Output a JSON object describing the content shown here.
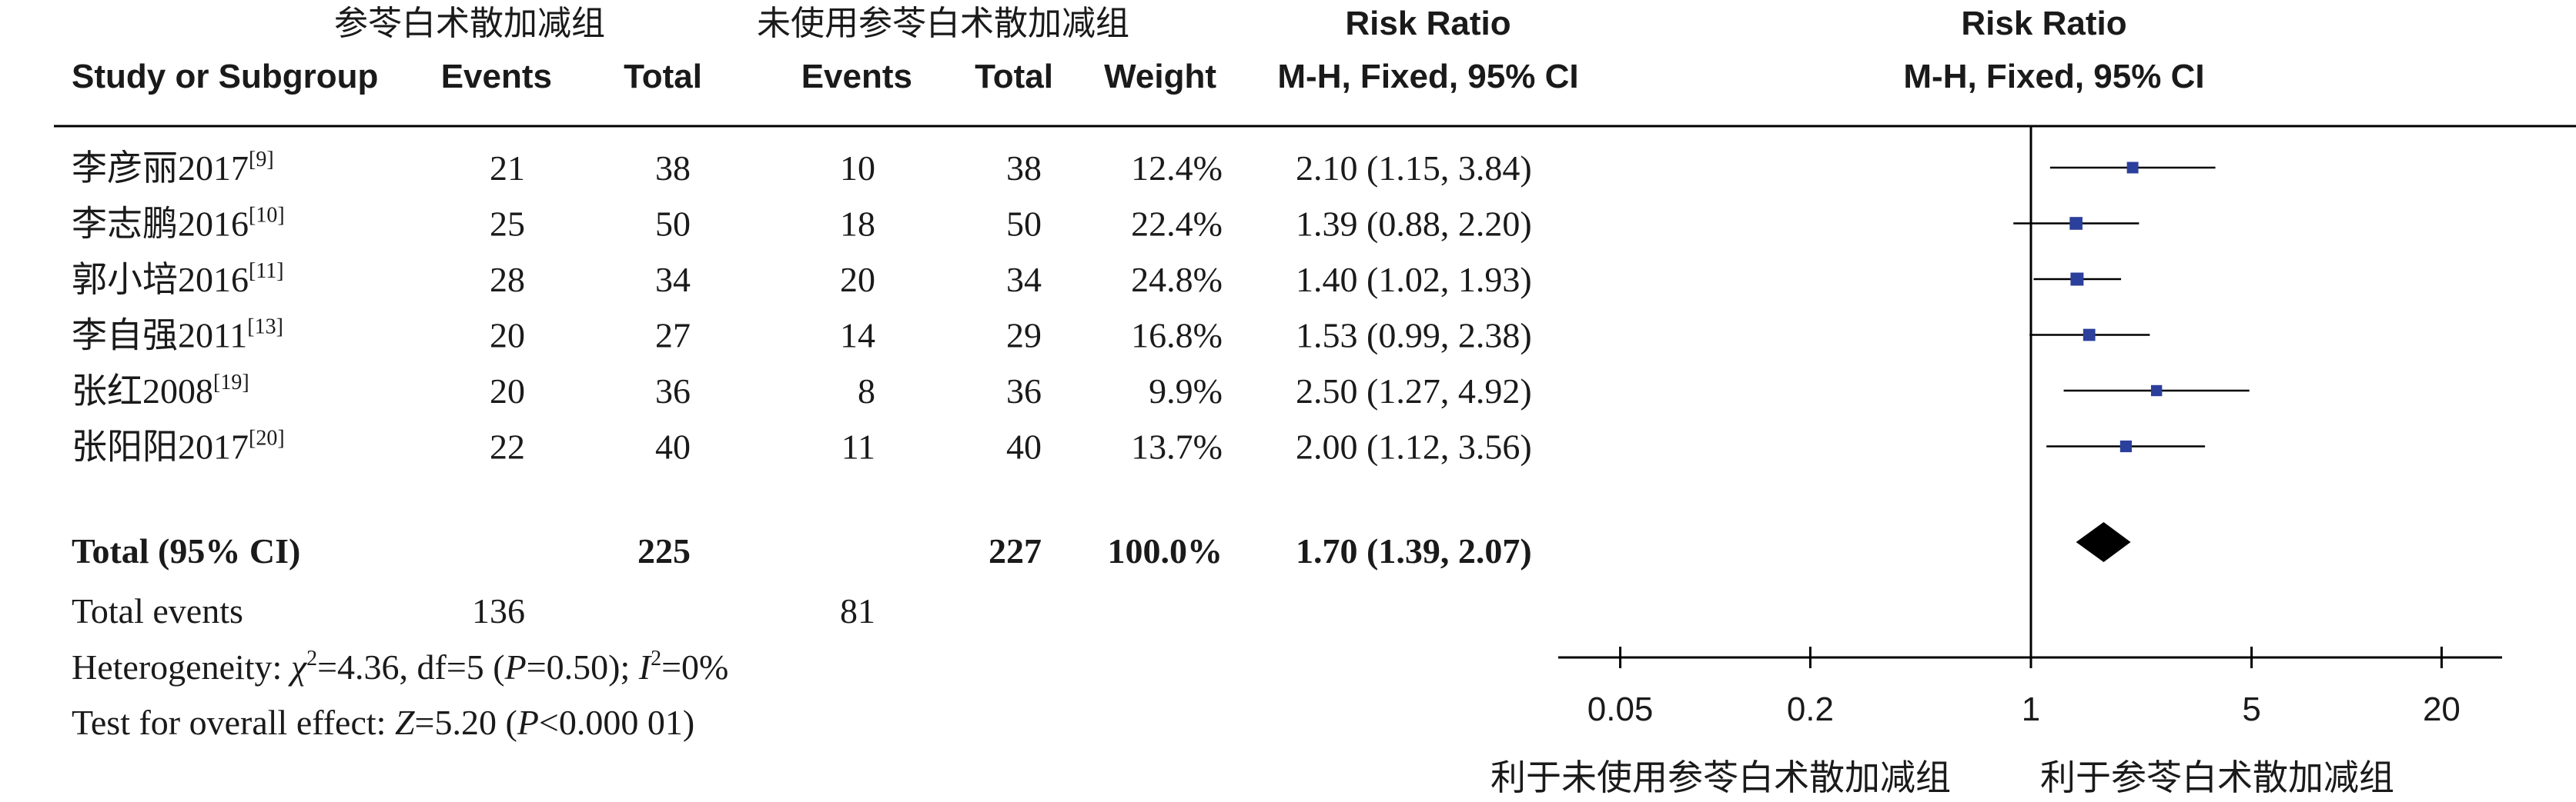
{
  "header": {
    "group_exp": "参苓白术散加减组",
    "group_ctl": "未使用参苓白术散加减组",
    "col_study": "Study or Subgroup",
    "col_events_exp": "Events",
    "col_total_exp": "Total",
    "col_events_ctl": "Events",
    "col_total_ctl": "Total",
    "col_weight": "Weight",
    "col_rr_title": "Risk Ratio",
    "col_rr_method": "M-H, Fixed, 95% CI",
    "plot_title": "Risk Ratio",
    "plot_method": "M-H, Fixed, 95% CI"
  },
  "studies": [
    {
      "name": "李彦丽2017",
      "ref": "[9]",
      "events_exp": "21",
      "total_exp": "38",
      "events_ctl": "10",
      "total_ctl": "38",
      "weight": "12.4%",
      "rr_text": "2.10 (1.15, 3.84)",
      "rr": 2.1,
      "lo": 1.15,
      "hi": 3.84,
      "w": 12.4
    },
    {
      "name": "李志鹏2016",
      "ref": "[10]",
      "events_exp": "25",
      "total_exp": "50",
      "events_ctl": "18",
      "total_ctl": "50",
      "weight": "22.4%",
      "rr_text": "1.39 (0.88, 2.20)",
      "rr": 1.39,
      "lo": 0.88,
      "hi": 2.2,
      "w": 22.4
    },
    {
      "name": "郭小培2016",
      "ref": "[11]",
      "events_exp": "28",
      "total_exp": "34",
      "events_ctl": "20",
      "total_ctl": "34",
      "weight": "24.8%",
      "rr_text": "1.40 (1.02, 1.93)",
      "rr": 1.4,
      "lo": 1.02,
      "hi": 1.93,
      "w": 24.8
    },
    {
      "name": "李自强2011",
      "ref": "[13]",
      "events_exp": "20",
      "total_exp": "27",
      "events_ctl": "14",
      "total_ctl": "29",
      "weight": "16.8%",
      "rr_text": "1.53 (0.99, 2.38)",
      "rr": 1.53,
      "lo": 0.99,
      "hi": 2.38,
      "w": 16.8
    },
    {
      "name": "张红2008",
      "ref": "[19]",
      "events_exp": "20",
      "total_exp": "36",
      "events_ctl": "8",
      "total_ctl": "36",
      "weight": "9.9%",
      "rr_text": "2.50 (1.27, 4.92)",
      "rr": 2.5,
      "lo": 1.27,
      "hi": 4.92,
      "w": 9.9
    },
    {
      "name": "张阳阳2017",
      "ref": "[20]",
      "events_exp": "22",
      "total_exp": "40",
      "events_ctl": "11",
      "total_ctl": "40",
      "weight": "13.7%",
      "rr_text": "2.00 (1.12, 3.56)",
      "rr": 2.0,
      "lo": 1.12,
      "hi": 3.56,
      "w": 13.7
    }
  ],
  "total": {
    "label": "Total (95% CI)",
    "total_exp": "225",
    "total_ctl": "227",
    "weight": "100.0%",
    "rr_text": "1.70 (1.39, 2.07)",
    "rr": 1.7,
    "lo": 1.39,
    "hi": 2.07
  },
  "events_row": {
    "label": "Total events",
    "events_exp": "136",
    "events_ctl": "81"
  },
  "heterogeneity": {
    "prefix": "Heterogeneity: ",
    "chi_symbol": "χ",
    "chi_exp": "2",
    "chi_value": "=4.36, df=5 (",
    "p_symbol": "P",
    "p_value": "=0.50); ",
    "i_symbol": "I",
    "i_exp": "2",
    "i_value": "=0%"
  },
  "overall_effect": {
    "prefix": "Test for overall effect: ",
    "z_symbol": "Z",
    "z_value": "=5.20 (",
    "p_symbol": "P",
    "p_value": "<0.000 01)"
  },
  "axis": {
    "ticks": [
      0.05,
      0.2,
      1,
      5,
      20
    ],
    "tick_labels": [
      "0.05",
      "0.2",
      "1",
      "5",
      "20"
    ],
    "left_label": "利于未使用参苓白术散加减组",
    "right_label": "利于参苓白术散加减组"
  },
  "chart_data": {
    "type": "forest",
    "scale": "log",
    "xlim": [
      0.05,
      20
    ],
    "null_value": 1,
    "series": [
      {
        "name": "李彦丽2017",
        "point": 2.1,
        "ci": [
          1.15,
          3.84
        ],
        "weight": 12.4
      },
      {
        "name": "李志鹏2016",
        "point": 1.39,
        "ci": [
          0.88,
          2.2
        ],
        "weight": 22.4
      },
      {
        "name": "郭小培2016",
        "point": 1.4,
        "ci": [
          1.02,
          1.93
        ],
        "weight": 24.8
      },
      {
        "name": "李自强2011",
        "point": 1.53,
        "ci": [
          0.99,
          2.38
        ],
        "weight": 16.8
      },
      {
        "name": "张红2008",
        "point": 2.5,
        "ci": [
          1.27,
          4.92
        ],
        "weight": 9.9
      },
      {
        "name": "张阳阳2017",
        "point": 2.0,
        "ci": [
          1.12,
          3.56
        ],
        "weight": 13.7
      }
    ],
    "pooled": {
      "point": 1.7,
      "ci": [
        1.39,
        2.07
      ]
    }
  },
  "colors": {
    "square": "#2b3f9c",
    "diamond": "#000000",
    "text": "#1a1a1a",
    "line": "#000000"
  }
}
